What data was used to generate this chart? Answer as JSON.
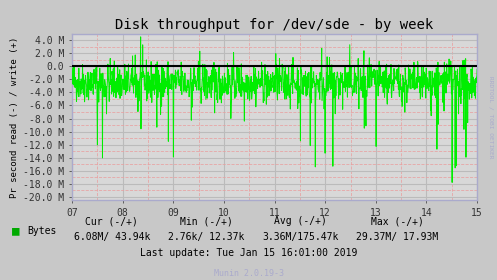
{
  "title": "Disk throughput for /dev/sde - by week",
  "ylabel": "Pr second read (-) / write (+)",
  "xlabel_ticks": [
    "07",
    "08",
    "09",
    "10",
    "11",
    "12",
    "13",
    "14",
    "15"
  ],
  "yticks": [
    4.0,
    2.0,
    0.0,
    -2.0,
    -4.0,
    -6.0,
    -8.0,
    -10.0,
    -12.0,
    -14.0,
    -16.0,
    -18.0,
    -20.0
  ],
  "ytick_labels": [
    "4.0 M",
    "2.0 M",
    "0.0",
    "-2.0 M",
    "-4.0 M",
    "-6.0 M",
    "-8.0 M",
    "-10.0 M",
    "-12.0 M",
    "-14.0 M",
    "-16.0 M",
    "-18.0 M",
    "-20.0 M"
  ],
  "ylim": [
    -20.5,
    5.0
  ],
  "xlim": [
    0,
    8
  ],
  "bg_color": "#c8c8c8",
  "plot_bg_color": "#d8d8d8",
  "grid_color_major": "#bbbbbb",
  "grid_color_minor": "#e8a0a0",
  "line_color": "#00ee00",
  "zero_line_color": "#000000",
  "legend_label": "Bytes",
  "legend_color": "#00aa00",
  "last_update": "Last update: Tue Jan 15 16:01:00 2019",
  "munin_version": "Munin 2.0.19-3",
  "right_label": "RRDTOOL / TOBI OETIKER",
  "spine_color": "#aaaacc",
  "title_fontsize": 10,
  "axis_fontsize": 7,
  "stats_fontsize": 7,
  "seed": 42
}
